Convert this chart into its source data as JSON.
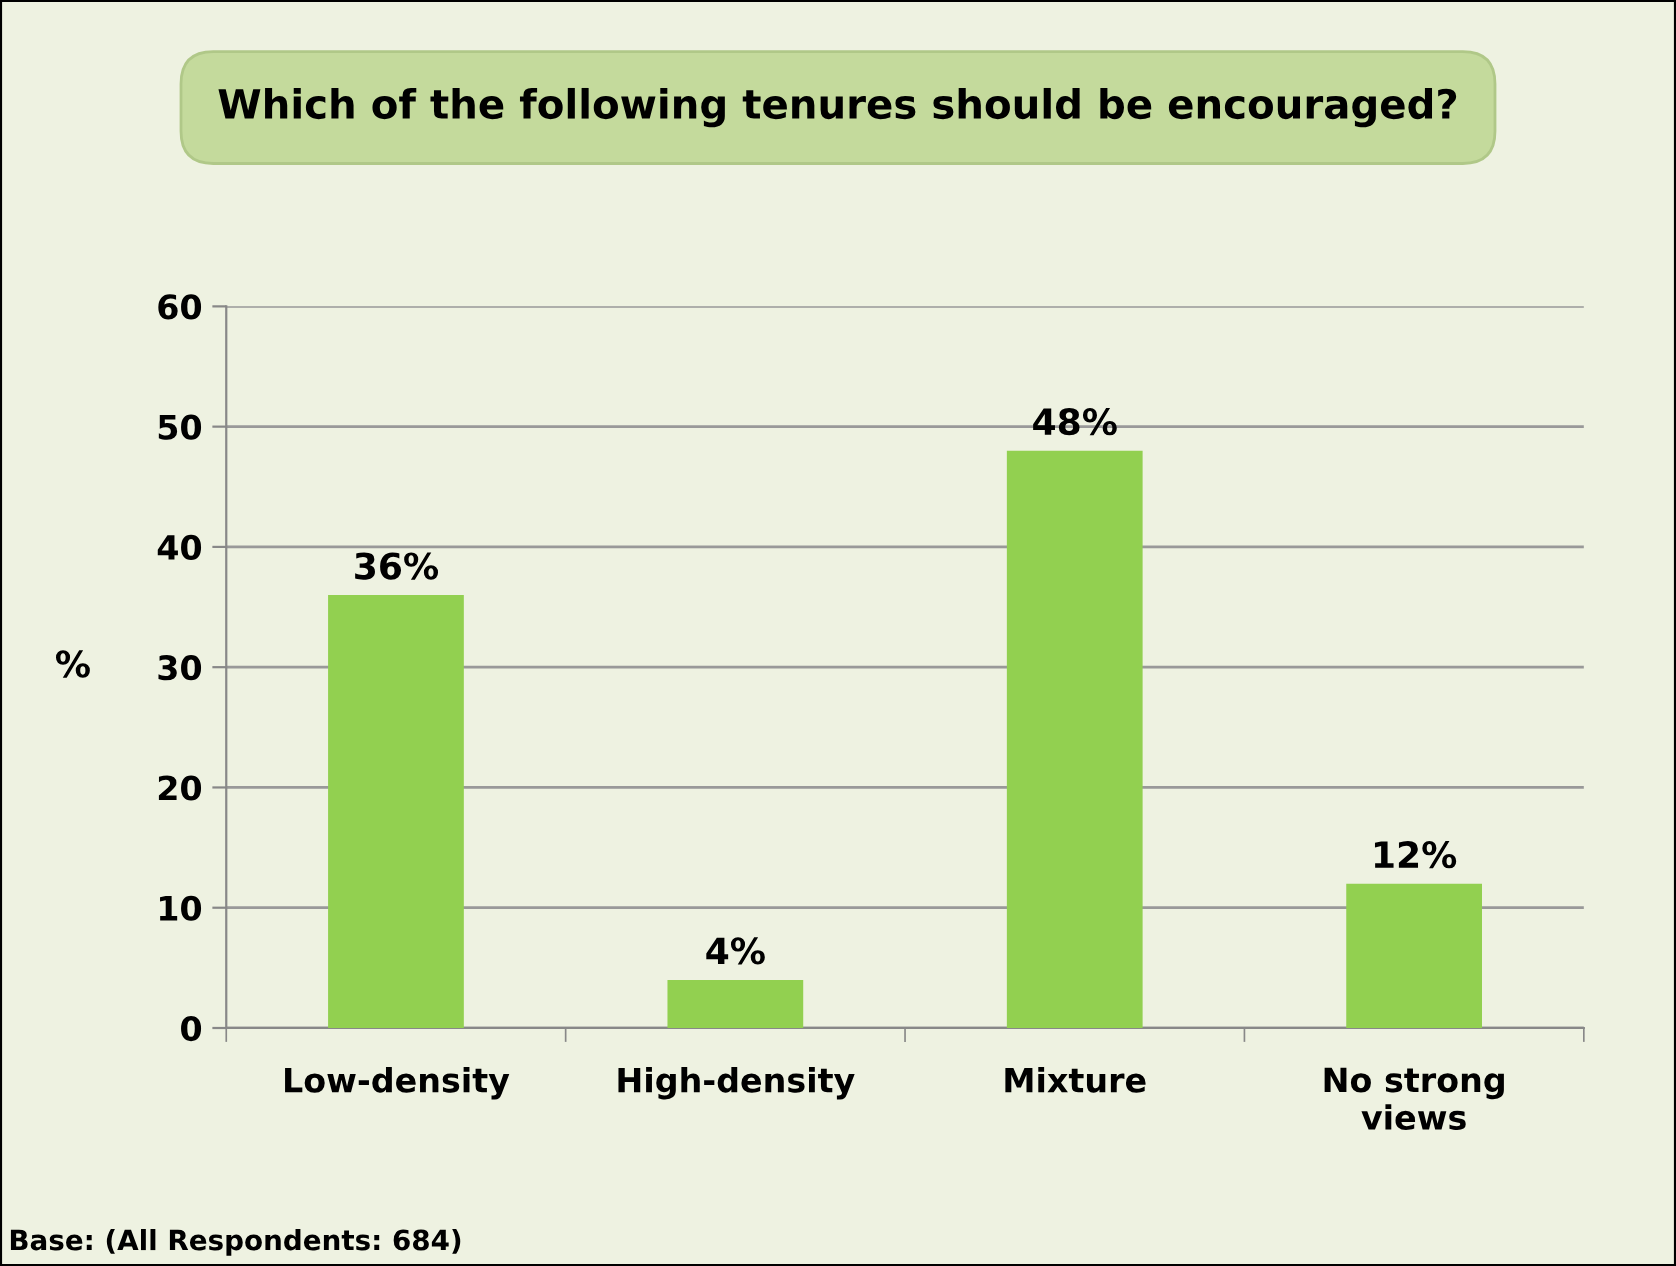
{
  "chart_data": {
    "type": "bar",
    "title": "Which of the following tenures should be encouraged?",
    "ylabel": "%",
    "categories": [
      "Low-density",
      "High-density",
      "Mixture",
      "No strong\nviews"
    ],
    "values": [
      36,
      4,
      48,
      12
    ],
    "value_labels": [
      "36%",
      "4%",
      "48%",
      "12%"
    ],
    "color": "#92d050",
    "ylim": [
      0,
      60
    ],
    "yticks": [
      0,
      10,
      20,
      30,
      40,
      50,
      60
    ],
    "grid": "y",
    "annotations": [
      "Base: (All Respondents: 684)"
    ]
  }
}
